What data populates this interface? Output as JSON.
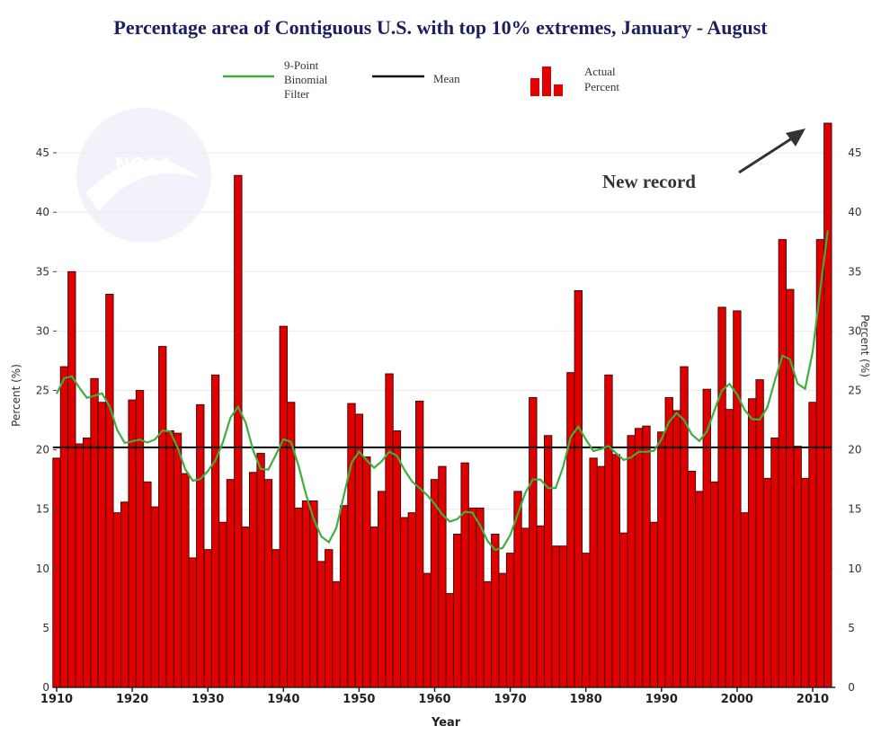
{
  "title": "Percentage area of Contiguous U.S. with top 10% extremes, January - August",
  "watermark": "NOAA",
  "annotation": "New record",
  "legend": {
    "filter_lines": [
      "9-Point",
      "Binomial",
      "Filter"
    ],
    "mean": "Mean",
    "actual_lines": [
      "Actual",
      "Percent"
    ]
  },
  "colors": {
    "bar": "#e00000",
    "bar_edge": "#3a0000",
    "filter": "#3fae3f",
    "mean": "#111111",
    "title": "#1c1f5e"
  },
  "chart_data": {
    "type": "bar",
    "title": "Percentage area of Contiguous U.S. with top 10% extremes, January - August",
    "xlabel": "Year",
    "ylabel": "Percent (%)",
    "ylabel_right": "Percent (%)",
    "xlim": [
      1910,
      2012
    ],
    "ylim": [
      0,
      47.5
    ],
    "xticks": [
      1910,
      1920,
      1930,
      1940,
      1950,
      1960,
      1970,
      1980,
      1990,
      2000,
      2010
    ],
    "yticks": [
      0,
      5,
      10,
      15,
      20,
      25,
      30,
      35,
      40,
      45
    ],
    "mean": 20.2,
    "filter": "9-point binomial",
    "start_year": 1910,
    "values": [
      19.3,
      27.0,
      35.0,
      20.5,
      21.0,
      26.0,
      24.0,
      33.1,
      14.7,
      15.6,
      24.2,
      25.0,
      17.3,
      15.2,
      28.7,
      21.6,
      21.4,
      18.0,
      10.9,
      23.8,
      11.6,
      26.3,
      13.9,
      17.5,
      43.1,
      13.5,
      18.1,
      19.7,
      17.5,
      11.6,
      30.4,
      24.0,
      15.1,
      15.7,
      15.7,
      10.6,
      11.6,
      8.9,
      15.3,
      23.9,
      23.0,
      19.4,
      13.5,
      16.5,
      26.4,
      21.6,
      14.3,
      14.7,
      24.1,
      9.6,
      17.5,
      18.6,
      7.9,
      12.9,
      18.9,
      15.1,
      15.1,
      8.9,
      12.9,
      9.6,
      11.3,
      16.5,
      13.4,
      24.4,
      13.6,
      21.2,
      11.9,
      11.9,
      26.5,
      33.4,
      11.3,
      19.3,
      18.6,
      26.3,
      19.6,
      13.0,
      21.2,
      21.8,
      22.0,
      13.9,
      21.5,
      24.4,
      23.3,
      27.0,
      18.2,
      16.5,
      25.1,
      17.3,
      32.0,
      23.4,
      31.7,
      14.7,
      24.3,
      25.9,
      17.6,
      21.0,
      37.7,
      33.5,
      20.3,
      17.6,
      24.0,
      37.7,
      47.5
    ]
  }
}
